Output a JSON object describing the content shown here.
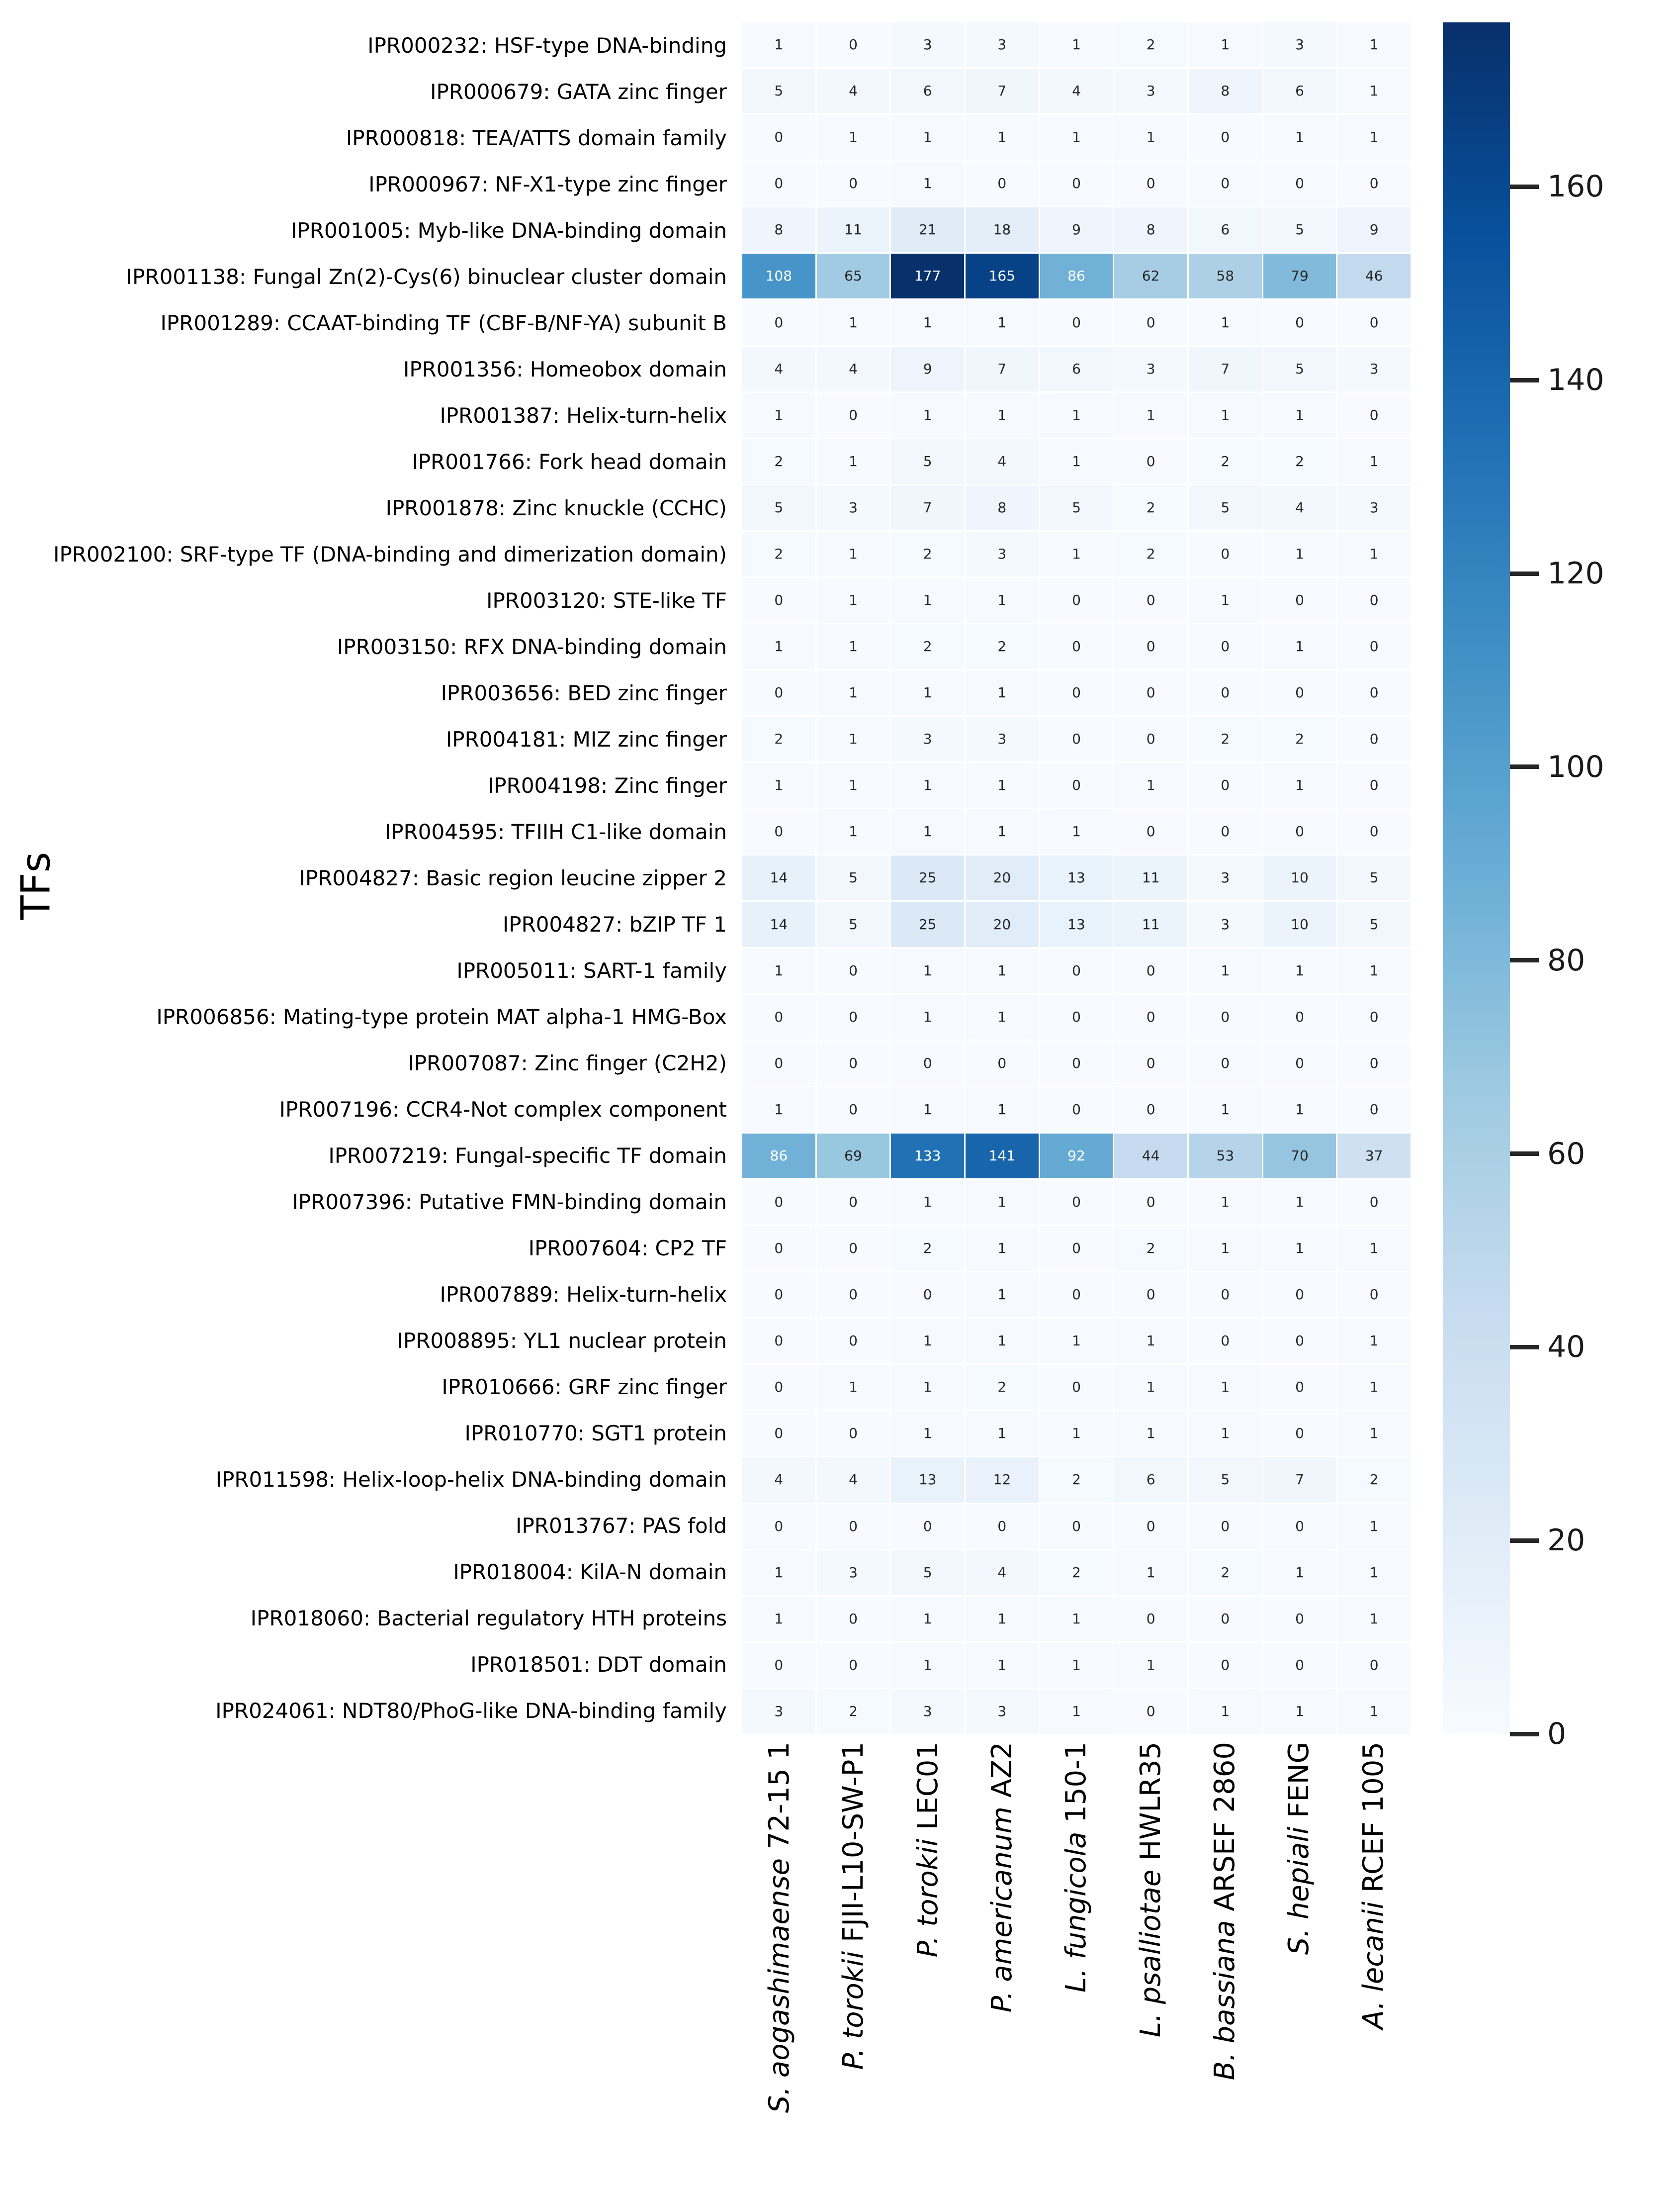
{
  "chart_data": {
    "type": "heatmap",
    "title": "",
    "xlabel": "",
    "ylabel": "TFs",
    "annotated": true,
    "colormap": "Blues",
    "vmin": 0,
    "vmax": 177,
    "grid": "cell-borders-white",
    "legend_position": "colorbar-right",
    "colorbar_ticks": [
      0,
      20,
      40,
      60,
      80,
      100,
      120,
      140,
      160
    ],
    "colormap_stops": [
      [
        0.0,
        "#f7fbff"
      ],
      [
        0.125,
        "#deebf7"
      ],
      [
        0.25,
        "#c6dbef"
      ],
      [
        0.375,
        "#9ecae1"
      ],
      [
        0.5,
        "#6baed6"
      ],
      [
        0.625,
        "#4292c6"
      ],
      [
        0.75,
        "#2171b5"
      ],
      [
        0.875,
        "#08519c"
      ],
      [
        1.0,
        "#08306b"
      ]
    ],
    "annotation_colors": {
      "dark": "#262626",
      "light": "#ffffff",
      "light_threshold": 0.47
    },
    "columns": [
      {
        "species": "S. aogashimaense",
        "strain": "72-15 1"
      },
      {
        "species": "P. torokii",
        "strain": "FJII-L10-SW-P1"
      },
      {
        "species": "P. torokii",
        "strain": "LEC01"
      },
      {
        "species": "P. americanum",
        "strain": "AZ2"
      },
      {
        "species": "L. fungicola",
        "strain": "150-1"
      },
      {
        "species": "L. psalliotae",
        "strain": "HWLR35"
      },
      {
        "species": "B. bassiana",
        "strain": "ARSEF 2860"
      },
      {
        "species": "S. hepiali",
        "strain": "FENG"
      },
      {
        "species": "A. lecanii",
        "strain": "RCEF 1005"
      }
    ],
    "rows": [
      {
        "label": "IPR000232: HSF-type DNA-binding",
        "values": [
          1,
          0,
          3,
          3,
          1,
          2,
          1,
          3,
          1
        ]
      },
      {
        "label": "IPR000679: GATA zinc finger",
        "values": [
          5,
          4,
          6,
          7,
          4,
          3,
          8,
          6,
          1
        ]
      },
      {
        "label": "IPR000818: TEA/ATTS domain family",
        "values": [
          0,
          1,
          1,
          1,
          1,
          1,
          0,
          1,
          1
        ]
      },
      {
        "label": "IPR000967: NF-X1-type zinc finger",
        "values": [
          0,
          0,
          1,
          0,
          0,
          0,
          0,
          0,
          0
        ]
      },
      {
        "label": "IPR001005: Myb-like DNA-binding domain",
        "values": [
          8,
          11,
          21,
          18,
          9,
          8,
          6,
          5,
          9
        ]
      },
      {
        "label": "IPR001138: Fungal Zn(2)-Cys(6) binuclear cluster domain",
        "values": [
          108,
          65,
          177,
          165,
          86,
          62,
          58,
          79,
          46
        ]
      },
      {
        "label": "IPR001289: CCAAT-binding TF (CBF-B/NF-YA) subunit B",
        "values": [
          0,
          1,
          1,
          1,
          0,
          0,
          1,
          0,
          0
        ]
      },
      {
        "label": "IPR001356: Homeobox domain",
        "values": [
          4,
          4,
          9,
          7,
          6,
          3,
          7,
          5,
          3
        ]
      },
      {
        "label": "IPR001387: Helix-turn-helix",
        "values": [
          1,
          0,
          1,
          1,
          1,
          1,
          1,
          1,
          0
        ]
      },
      {
        "label": "IPR001766: Fork head domain",
        "values": [
          2,
          1,
          5,
          4,
          1,
          0,
          2,
          2,
          1
        ]
      },
      {
        "label": "IPR001878: Zinc knuckle (CCHC)",
        "values": [
          5,
          3,
          7,
          8,
          5,
          2,
          5,
          4,
          3
        ]
      },
      {
        "label": "IPR002100: SRF-type TF (DNA-binding and dimerization domain)",
        "values": [
          2,
          1,
          2,
          3,
          1,
          2,
          0,
          1,
          1
        ]
      },
      {
        "label": "IPR003120: STE-like TF",
        "values": [
          0,
          1,
          1,
          1,
          0,
          0,
          1,
          0,
          0
        ]
      },
      {
        "label": "IPR003150: RFX DNA-binding domain",
        "values": [
          1,
          1,
          2,
          2,
          0,
          0,
          0,
          1,
          0
        ]
      },
      {
        "label": "IPR003656: BED zinc finger",
        "values": [
          0,
          1,
          1,
          1,
          0,
          0,
          0,
          0,
          0
        ]
      },
      {
        "label": "IPR004181: MIZ zinc finger",
        "values": [
          2,
          1,
          3,
          3,
          0,
          0,
          2,
          2,
          0
        ]
      },
      {
        "label": "IPR004198: Zinc finger",
        "values": [
          1,
          1,
          1,
          1,
          0,
          1,
          0,
          1,
          0
        ]
      },
      {
        "label": "IPR004595: TFIIH C1-like domain",
        "values": [
          0,
          1,
          1,
          1,
          1,
          0,
          0,
          0,
          0
        ]
      },
      {
        "label": "IPR004827: Basic region leucine zipper 2",
        "values": [
          14,
          5,
          25,
          20,
          13,
          11,
          3,
          10,
          5
        ]
      },
      {
        "label": "IPR004827: bZIP TF 1",
        "values": [
          14,
          5,
          25,
          20,
          13,
          11,
          3,
          10,
          5
        ]
      },
      {
        "label": "IPR005011: SART-1 family",
        "values": [
          1,
          0,
          1,
          1,
          0,
          0,
          1,
          1,
          1
        ]
      },
      {
        "label": "IPR006856: Mating-type protein MAT alpha-1 HMG-Box",
        "values": [
          0,
          0,
          1,
          1,
          0,
          0,
          0,
          0,
          0
        ]
      },
      {
        "label": "IPR007087: Zinc finger (C2H2)",
        "values": [
          0,
          0,
          0,
          0,
          0,
          0,
          0,
          0,
          0
        ]
      },
      {
        "label": "IPR007196: CCR4-Not complex component",
        "values": [
          1,
          0,
          1,
          1,
          0,
          0,
          1,
          1,
          0
        ]
      },
      {
        "label": "IPR007219: Fungal-specific TF domain",
        "values": [
          86,
          69,
          133,
          141,
          92,
          44,
          53,
          70,
          37
        ]
      },
      {
        "label": "IPR007396: Putative FMN-binding domain",
        "values": [
          0,
          0,
          1,
          1,
          0,
          0,
          1,
          1,
          0
        ]
      },
      {
        "label": "IPR007604: CP2 TF",
        "values": [
          0,
          0,
          2,
          1,
          0,
          2,
          1,
          1,
          1
        ]
      },
      {
        "label": "IPR007889: Helix-turn-helix",
        "values": [
          0,
          0,
          0,
          1,
          0,
          0,
          0,
          0,
          0
        ]
      },
      {
        "label": "IPR008895: YL1 nuclear protein",
        "values": [
          0,
          0,
          1,
          1,
          1,
          1,
          0,
          0,
          1
        ]
      },
      {
        "label": "IPR010666: GRF zinc finger",
        "values": [
          0,
          1,
          1,
          2,
          0,
          1,
          1,
          0,
          1
        ]
      },
      {
        "label": "IPR010770: SGT1 protein",
        "values": [
          0,
          0,
          1,
          1,
          1,
          1,
          1,
          0,
          1
        ]
      },
      {
        "label": "IPR011598: Helix-loop-helix DNA-binding domain",
        "values": [
          4,
          4,
          13,
          12,
          2,
          6,
          5,
          7,
          2
        ]
      },
      {
        "label": "IPR013767: PAS fold",
        "values": [
          0,
          0,
          0,
          0,
          0,
          0,
          0,
          0,
          1
        ]
      },
      {
        "label": "IPR018004: KilA-N domain",
        "values": [
          1,
          3,
          5,
          4,
          2,
          1,
          2,
          1,
          1
        ]
      },
      {
        "label": "IPR018060: Bacterial regulatory HTH proteins",
        "values": [
          1,
          0,
          1,
          1,
          1,
          0,
          0,
          0,
          1
        ]
      },
      {
        "label": "IPR018501: DDT domain",
        "values": [
          0,
          0,
          1,
          1,
          1,
          1,
          0,
          0,
          0
        ]
      },
      {
        "label": "IPR024061: NDT80/PhoG-like DNA-binding family",
        "values": [
          3,
          2,
          3,
          3,
          1,
          0,
          1,
          1,
          1
        ]
      }
    ]
  }
}
